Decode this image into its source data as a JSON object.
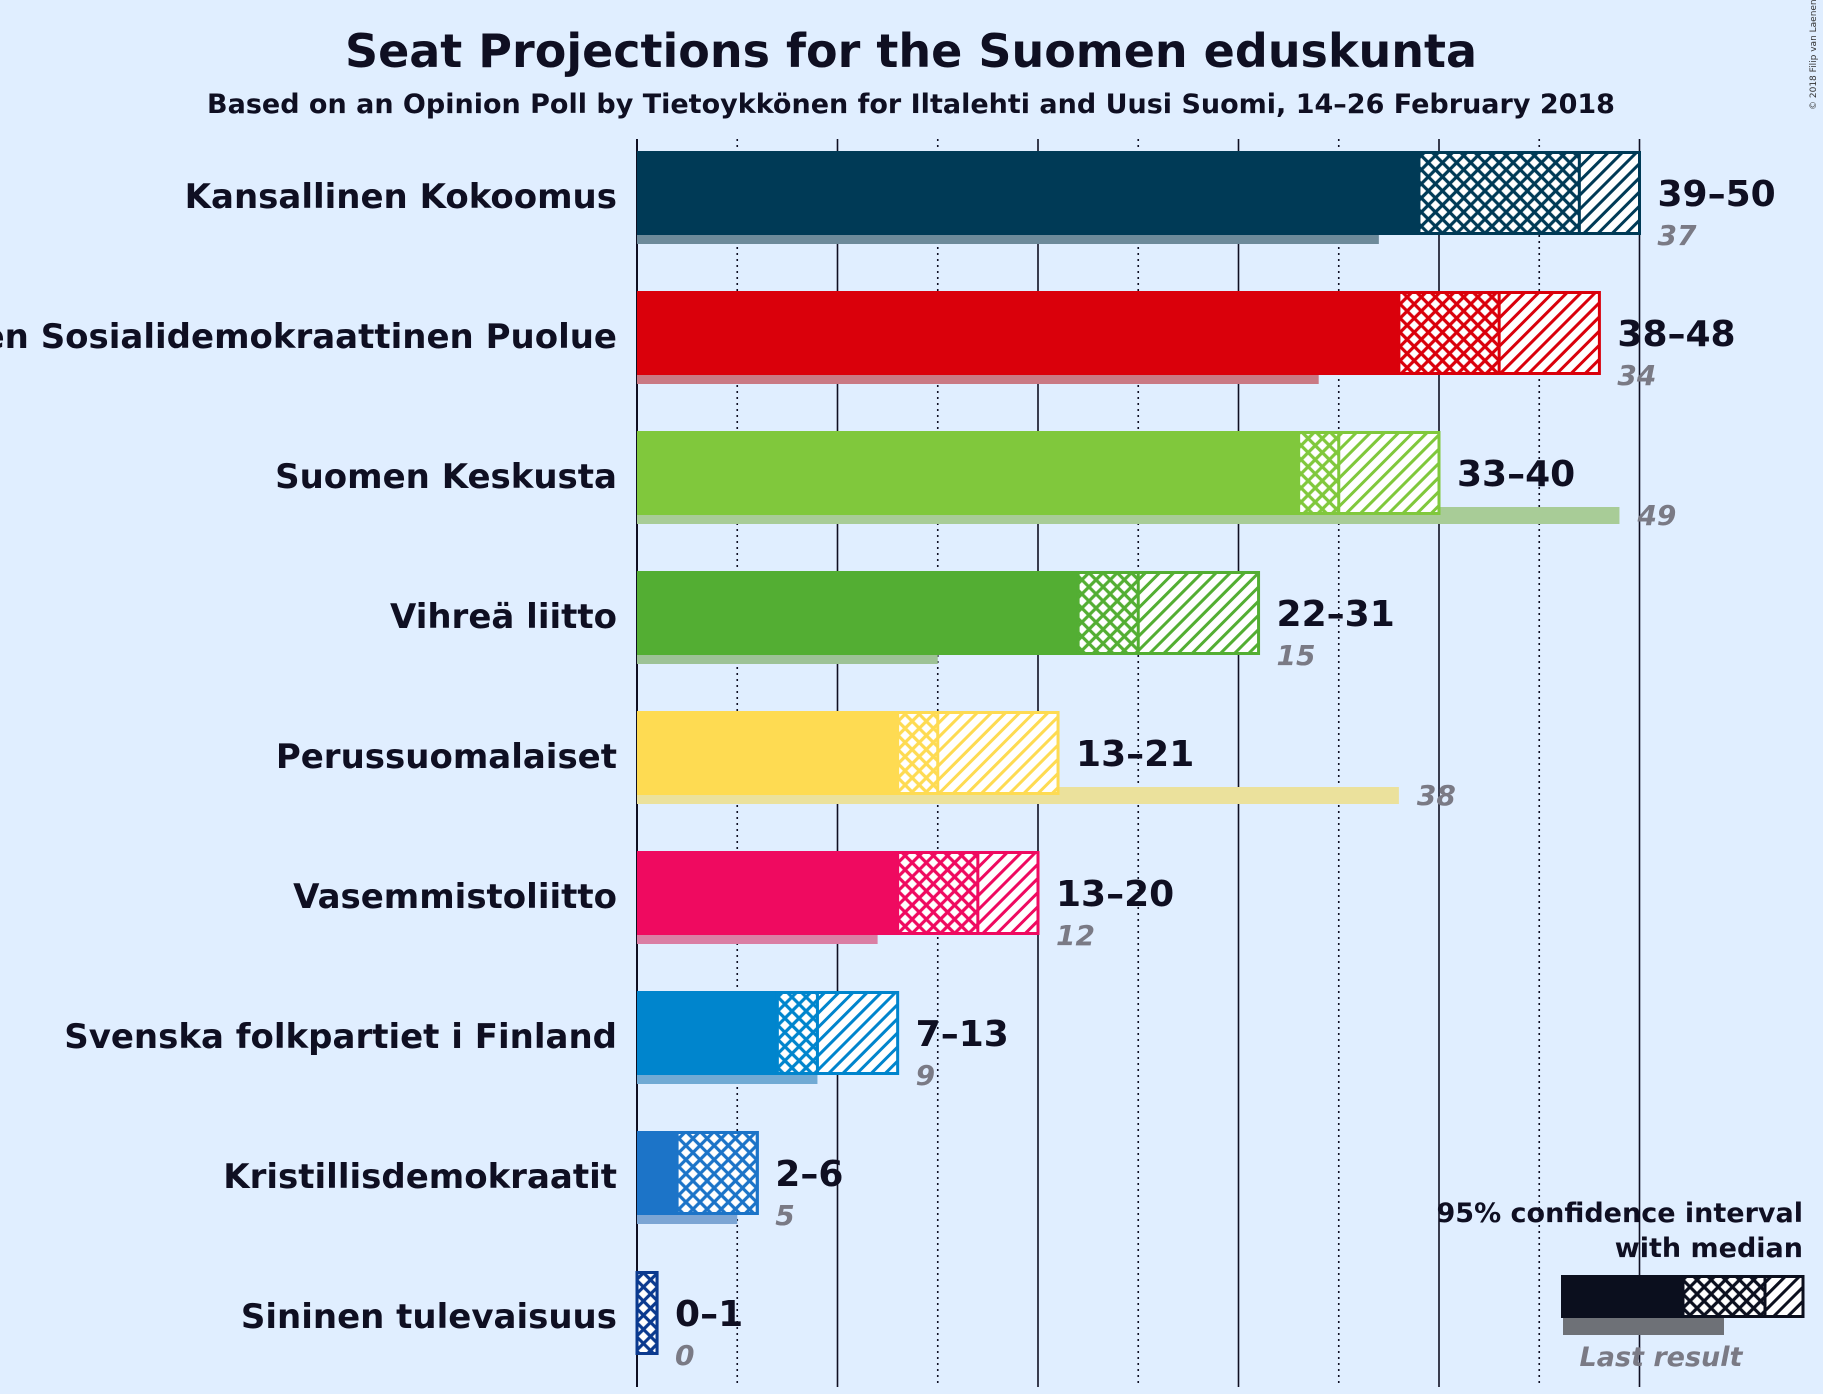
{
  "chart_data": {
    "type": "bar",
    "title": "Seat Projections for the Suomen eduskunta",
    "subtitle": "Based on an Opinion Poll by Tietoykkönen for Iltalehti and Uusi Suomi, 14–26 February 2018",
    "copyright": "© 2018 Filip van Laenen",
    "x_range": [
      0,
      50
    ],
    "gridlines": {
      "solid_every": 10,
      "dotted_every": 5
    },
    "parties": [
      {
        "name": "Kansallinen Kokoomus",
        "low": 39,
        "median": 47,
        "high": 50,
        "range_label": "39–50",
        "last": 37,
        "last_label": "37",
        "color": "#003a56",
        "last_color": "#6d8a9a"
      },
      {
        "name": "Suomen Sosialidemokraattinen Puolue",
        "low": 38,
        "median": 43,
        "high": 48,
        "range_label": "38–48",
        "last": 34,
        "last_label": "34",
        "color": "#da000b",
        "last_color": "#c97984"
      },
      {
        "name": "Suomen Keskusta",
        "low": 33,
        "median": 35,
        "high": 40,
        "range_label": "33–40",
        "last": 49,
        "last_label": "49",
        "color": "#80c83c",
        "last_color": "#a8cc97"
      },
      {
        "name": "Vihreä liitto",
        "low": 22,
        "median": 25,
        "high": 31,
        "range_label": "22–31",
        "last": 15,
        "last_label": "15",
        "color": "#53ae33",
        "last_color": "#9dc296"
      },
      {
        "name": "Perussuomalaiset",
        "low": 13,
        "median": 15,
        "high": 21,
        "range_label": "13–21",
        "last": 38,
        "last_label": "38",
        "color": "#fedb52",
        "last_color": "#ebe19c"
      },
      {
        "name": "Vasemmistoliitto",
        "low": 13,
        "median": 17,
        "high": 20,
        "range_label": "13–20",
        "last": 12,
        "last_label": "12",
        "color": "#ef0a60",
        "last_color": "#da7ea4"
      },
      {
        "name": "Svenska folkpartiet i Finland",
        "low": 7,
        "median": 9,
        "high": 13,
        "range_label": "7–13",
        "last": 9,
        "last_label": "9",
        "color": "#0085cd",
        "last_color": "#71aad4"
      },
      {
        "name": "Kristillisdemokraatit",
        "low": 2,
        "median": 6,
        "high": 6,
        "range_label": "2–6",
        "last": 5,
        "last_label": "5",
        "color": "#1c74c8",
        "last_color": "#7ca5d4"
      },
      {
        "name": "Sininen tulevaisuus",
        "low": 0,
        "median": 1,
        "high": 1,
        "range_label": "0–1",
        "last": 0,
        "last_label": "0",
        "color": "#0b3a8f",
        "last_color": "#7b90bf"
      }
    ],
    "legend": {
      "line1": "95% confidence interval",
      "line2": "with median",
      "last_result": "Last result",
      "color": "#0b0f1e",
      "last_color": "#6e7177"
    }
  }
}
